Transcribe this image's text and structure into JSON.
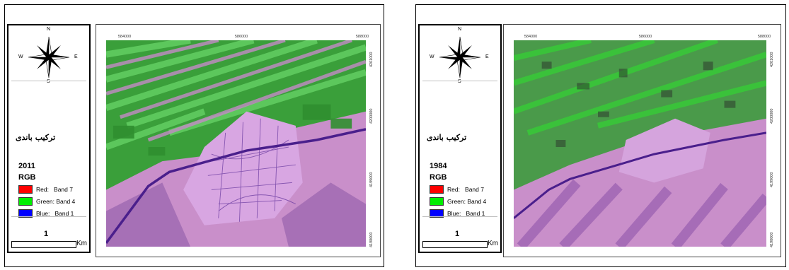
{
  "panels": [
    {
      "id": "2011",
      "legend": {
        "north": "N",
        "south": "S",
        "east": "E",
        "west": "W",
        "title": "ترکیب باندی",
        "year": "2011",
        "composite": "RGB",
        "bands": [
          {
            "label": "Red:   Band 7",
            "color": "#ff0000"
          },
          {
            "label": "Green: Band 4",
            "color": "#00ee00"
          },
          {
            "label": "Blue:   Band 1",
            "color": "#0000ff"
          }
        ],
        "scale_value": "1",
        "scale_unit": "Km"
      },
      "ticks_top": [
        "584000",
        "586000",
        "588000"
      ],
      "ticks_right": [
        "4201000",
        "4200000",
        "4199000",
        "4198000"
      ]
    },
    {
      "id": "1984",
      "legend": {
        "north": "N",
        "south": "S",
        "east": "E",
        "west": "W",
        "title": "ترکیب باندی",
        "year": "1984",
        "composite": "RGB",
        "bands": [
          {
            "label": "Red:   Band 7",
            "color": "#ff0000"
          },
          {
            "label": "Green: Band 4",
            "color": "#00ee00"
          },
          {
            "label": "Blue:   Band 1",
            "color": "#0000ff"
          }
        ],
        "scale_value": "1",
        "scale_unit": "Km"
      },
      "ticks_top": [
        "584000",
        "586000",
        "588000"
      ],
      "ticks_right": [
        "4201000",
        "4200000",
        "4199000",
        "4198000"
      ]
    }
  ],
  "colors": {
    "vegetation": "#3aa83a",
    "bright_vegetation": "#33e033",
    "soil_pink": "#c78ec8",
    "soil_purple": "#8a5aa8",
    "road": "#4a1f8c"
  }
}
